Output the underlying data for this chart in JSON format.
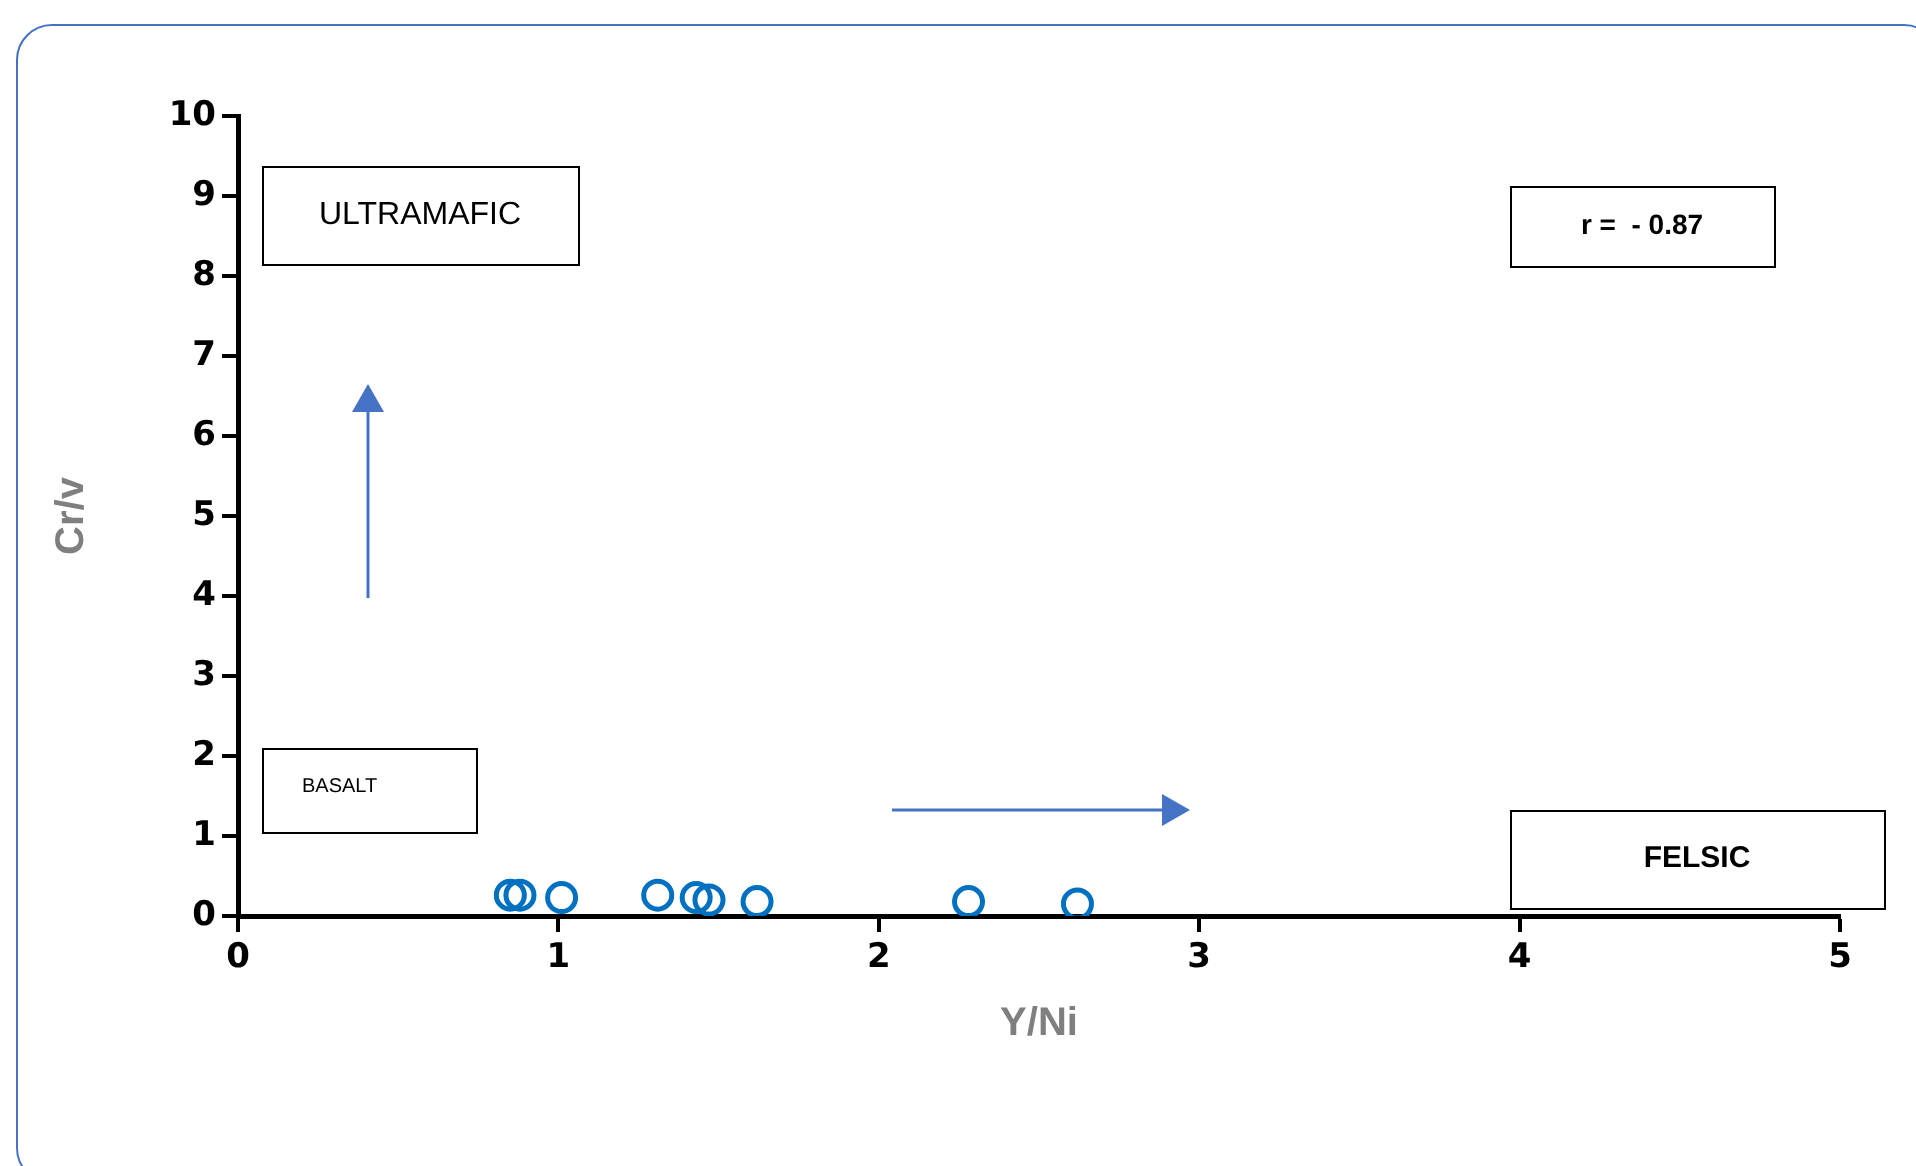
{
  "chart_data": {
    "type": "scatter",
    "xlabel": "Y/Ni",
    "ylabel": "Cr/v",
    "x": [
      0.85,
      0.88,
      1.01,
      1.31,
      1.43,
      1.47,
      1.62,
      2.28,
      2.62
    ],
    "values": [
      0.26,
      0.26,
      0.23,
      0.26,
      0.23,
      0.2,
      0.18,
      0.18,
      0.15
    ],
    "color": "#0070c0",
    "marker": "circle",
    "xlim": [
      0,
      5
    ],
    "xticks": [
      0,
      1,
      2,
      3,
      4,
      5
    ],
    "ylim": [
      0,
      10
    ],
    "yticks": [
      0,
      1,
      2,
      3,
      4,
      5,
      6,
      7,
      8,
      9,
      10
    ],
    "grid": false,
    "legend": false,
    "annotations": [
      "ULTRAMAFIC",
      "r =  - 0.87",
      "BASALT",
      "FELSIC"
    ]
  }
}
